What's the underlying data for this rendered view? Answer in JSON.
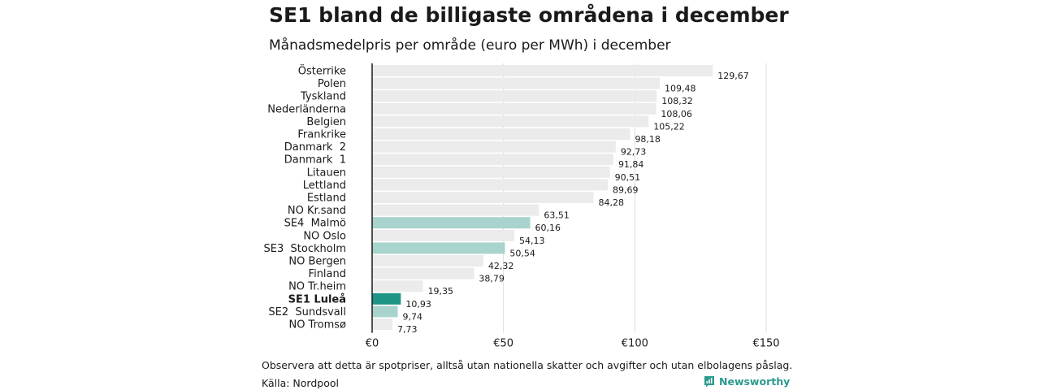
{
  "header": {
    "title": "SE1 bland de billigaste områdena i december",
    "subtitle": "Månadsmedelpris per område (euro per MWh) i december"
  },
  "footer": {
    "note": "Observera att detta är spotpriser, alltså utan nationella skatter och avgifter och utan elbolagens påslag.",
    "source": "Källa: Nordpool",
    "brand": "Newsworthy",
    "brand_icon": "newsworthy-logo-icon"
  },
  "colors": {
    "default_bar": "#ebebeb",
    "swedish_bar": "#a8d4cd",
    "highlight_bar": "#1e9486",
    "axis": "#1a1a1a",
    "grid": "#dddddd",
    "brand": "#2b9a8d"
  },
  "chart_data": {
    "type": "bar",
    "orientation": "horizontal",
    "title": "SE1 bland de billigaste områdena i december",
    "subtitle": "Månadsmedelpris per område (euro per MWh) i december",
    "xlim": [
      0,
      150
    ],
    "x_ticks": [
      0,
      50,
      100,
      150
    ],
    "x_tick_labels": [
      "€0",
      "€50",
      "€100",
      "€150"
    ],
    "grid": "vertical",
    "categories": [
      "Österrike",
      "Polen",
      "Tyskland",
      "Nederländerna",
      "Belgien",
      "Frankrike",
      "Danmark  2",
      "Danmark  1",
      "Litauen",
      "Lettland",
      "Estland",
      "NO Kr.sand",
      "SE4  Malmö",
      "NO Oslo",
      "SE3  Stockholm",
      "NO Bergen",
      "Finland",
      "NO Tr.heim",
      "SE1 Luleå",
      "SE2  Sundsvall",
      "NO Tromsø"
    ],
    "values": [
      129.67,
      109.48,
      108.32,
      108.06,
      105.22,
      98.18,
      92.73,
      91.84,
      90.51,
      89.69,
      84.28,
      63.51,
      60.16,
      54.13,
      50.54,
      42.32,
      38.79,
      19.35,
      10.93,
      9.74,
      7.73
    ],
    "value_labels": [
      "129,67",
      "109,48",
      "108,32",
      "108,06",
      "105,22",
      "98,18",
      "92,73",
      "91,84",
      "90,51",
      "89,69",
      "84,28",
      "63,51",
      "60,16",
      "54,13",
      "50,54",
      "42,32",
      "38,79",
      "19,35",
      "10,93",
      "9,74",
      "7,73"
    ],
    "swedish_areas": [
      "SE4  Malmö",
      "SE3  Stockholm",
      "SE2  Sundsvall"
    ],
    "highlight": "SE1 Luleå"
  }
}
